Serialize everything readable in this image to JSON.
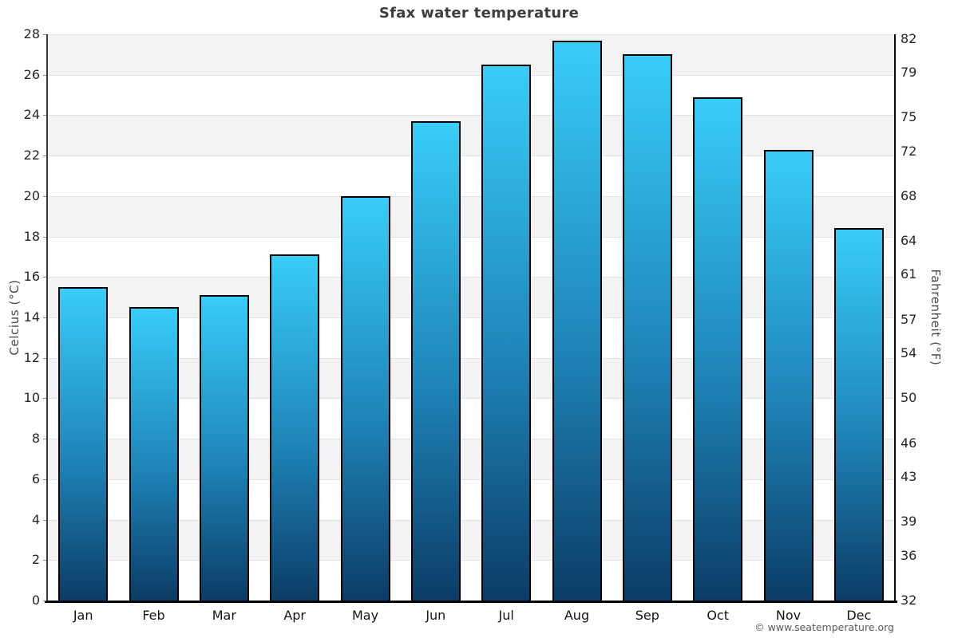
{
  "header": {
    "title": "Sfax water temperature"
  },
  "footer": {
    "copyright": "© www.seatemperature.org"
  },
  "chart_data": {
    "type": "bar",
    "title": "Sfax water temperature",
    "categories": [
      "Jan",
      "Feb",
      "Mar",
      "Apr",
      "May",
      "Jun",
      "Jul",
      "Aug",
      "Sep",
      "Oct",
      "Nov",
      "Dec"
    ],
    "values": [
      15.5,
      14.5,
      15.1,
      17.1,
      20.0,
      23.7,
      26.5,
      27.7,
      27.0,
      24.9,
      22.3,
      18.4
    ],
    "ylabel_left": "Celcius (°C)",
    "ylabel_right": "Fahrenheit (°F)",
    "ylim": [
      0,
      28
    ],
    "yticks_left": [
      0,
      2,
      4,
      6,
      8,
      10,
      12,
      14,
      16,
      18,
      20,
      22,
      24,
      26,
      28
    ],
    "yticks_right": [
      32,
      36,
      39,
      43,
      46,
      50,
      54,
      57,
      61,
      64,
      68,
      72,
      75,
      79,
      82
    ],
    "grid": "horizontal gridlines every 2°C with alternating light-gray bands",
    "legend": "none",
    "colors": {
      "bar_gradient_top": "#38cdf8",
      "bar_gradient_bottom": "#0b3c66",
      "bar_border": "#000000",
      "band_shade": "#f3f3f3",
      "gridline": "#e2e2e2",
      "axis": "#000000",
      "tick_label": "#262626",
      "axis_title": "#4a4a4a",
      "title": "#3d3d3d"
    }
  }
}
